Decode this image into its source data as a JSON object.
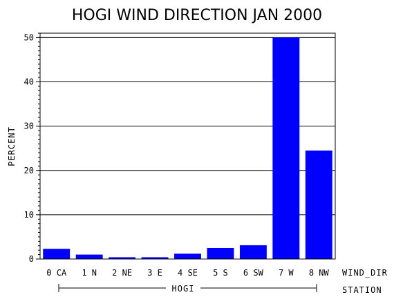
{
  "chart_data": {
    "type": "bar",
    "title": "HOGI WIND DIRECTION JAN 2000",
    "ylabel": "PERCENT",
    "xlabel": "WIND_DIR",
    "group_axis_label": "STATION",
    "group_label": "HOGI",
    "categories": [
      "0 CA",
      "1 N",
      "2 NE",
      "3 E",
      "4 SE",
      "5 S",
      "6 SW",
      "7 W",
      "8 NW"
    ],
    "values": [
      2.3,
      1.0,
      0.4,
      0.4,
      1.2,
      2.5,
      3.1,
      50.0,
      24.5
    ],
    "ylim": [
      0,
      51
    ],
    "yticks": [
      0,
      10,
      20,
      30,
      40,
      50
    ],
    "ytick_labels": [
      "0",
      "10",
      "20",
      "30",
      "40",
      "50"
    ],
    "grid": true,
    "bar_color": "#0000ff"
  }
}
